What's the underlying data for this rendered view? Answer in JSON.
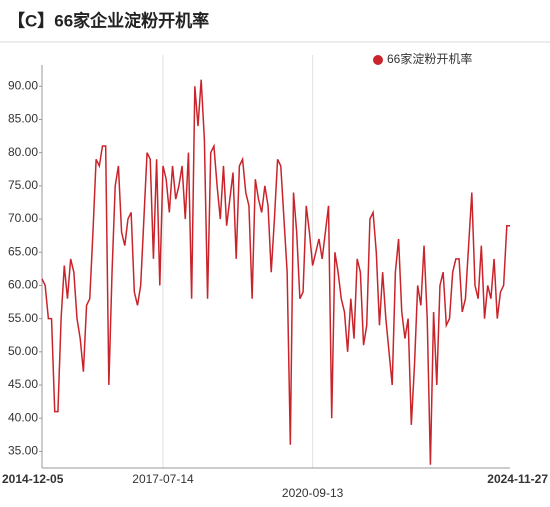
{
  "chart_data": {
    "type": "line",
    "title": "【C】66家企业淀粉开机率",
    "categories": [
      "2014-12-05",
      null,
      null,
      null,
      null,
      null,
      null,
      null,
      null,
      null,
      null,
      null,
      null,
      null,
      null,
      null,
      null,
      null,
      null,
      null,
      null,
      null,
      null,
      null,
      null,
      null,
      null,
      null,
      null,
      null,
      null,
      null,
      null,
      null,
      null,
      null,
      null,
      null,
      "2017-07-14",
      null,
      null,
      null,
      null,
      null,
      null,
      null,
      null,
      null,
      null,
      null,
      null,
      null,
      null,
      null,
      null,
      null,
      null,
      null,
      null,
      null,
      null,
      null,
      null,
      null,
      null,
      null,
      null,
      null,
      null,
      null,
      null,
      null,
      null,
      null,
      null,
      null,
      null,
      null,
      null,
      null,
      null,
      null,
      null,
      null,
      null,
      "2020-09-13",
      null,
      null,
      null,
      null,
      null,
      null,
      null,
      null,
      null,
      null,
      null,
      null,
      null,
      null,
      null,
      null,
      null,
      null,
      null,
      null,
      null,
      null,
      null,
      null,
      null,
      null,
      null,
      null,
      null,
      null,
      null,
      null,
      null,
      null,
      null,
      null,
      null,
      null,
      null,
      null,
      null,
      null,
      null,
      null,
      null,
      null,
      null,
      null,
      null,
      null,
      null,
      null,
      null,
      null,
      null,
      null,
      null,
      null,
      null,
      null,
      null,
      "2024-11-27"
    ],
    "series": [
      {
        "name": "66家淀粉开机率",
        "color": "#c9242b",
        "values": [
          61,
          60,
          55,
          55,
          41,
          41,
          55,
          63,
          58,
          64,
          62,
          55,
          52,
          47,
          57,
          58,
          68,
          79,
          78,
          81,
          81,
          45,
          62,
          75,
          78,
          68,
          66,
          70,
          71,
          59,
          57,
          60,
          70,
          80,
          79,
          64,
          79,
          60,
          78,
          76,
          71,
          78,
          73,
          75,
          78,
          70,
          80,
          58,
          90,
          84,
          91,
          82,
          58,
          80,
          81,
          75,
          70,
          78,
          69,
          73,
          77,
          64,
          78,
          79,
          74,
          72,
          58,
          76,
          73,
          71,
          75,
          72,
          62,
          70,
          79,
          78,
          70,
          62,
          36,
          74,
          68,
          58,
          59,
          72,
          68,
          63,
          65,
          67,
          64,
          68,
          72,
          40,
          65,
          62,
          58,
          56,
          50,
          58,
          52,
          64,
          62,
          51,
          54,
          70,
          71,
          65,
          54,
          62,
          55,
          50,
          45,
          62,
          67,
          56,
          52,
          55,
          39,
          48,
          60,
          57,
          66,
          55,
          33,
          56,
          45,
          60,
          62,
          54,
          55,
          62,
          64,
          64,
          56,
          58,
          66,
          74,
          60,
          58,
          66,
          55,
          60,
          58,
          64,
          55,
          59,
          60,
          69,
          69
        ]
      }
    ],
    "ylim": [
      32.5,
      91.7
    ],
    "yticks": [
      {
        "value": 35,
        "label": "35.00"
      },
      {
        "value": 40,
        "label": "40.00"
      },
      {
        "value": 45,
        "label": "45.00"
      },
      {
        "value": 50,
        "label": "50.00"
      },
      {
        "value": 55,
        "label": "55.00"
      },
      {
        "value": 60,
        "label": "60.00"
      },
      {
        "value": 65,
        "label": "65.00"
      },
      {
        "value": 70,
        "label": "70.00"
      },
      {
        "value": 75,
        "label": "75.00"
      },
      {
        "value": 80,
        "label": "80.00"
      },
      {
        "value": 85,
        "label": "85.00"
      },
      {
        "value": 90,
        "label": "90.00"
      }
    ],
    "legend": "top-right"
  }
}
